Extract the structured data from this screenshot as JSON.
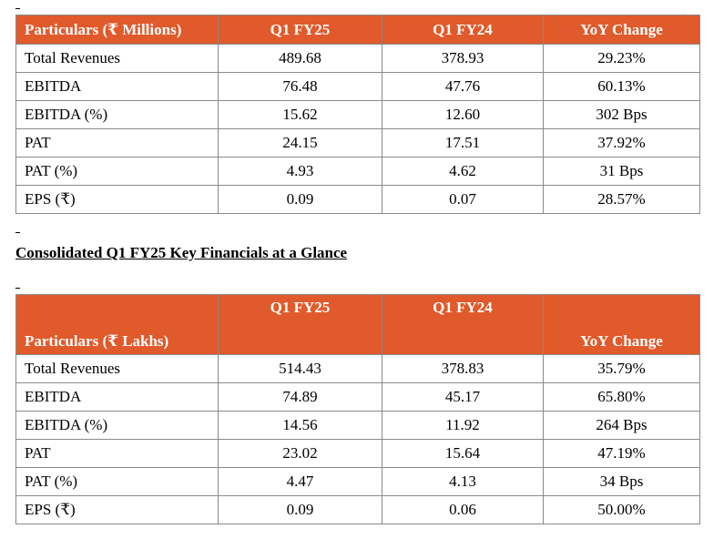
{
  "table1": {
    "headers": [
      "Particulars (₹ Millions)",
      "Q1 FY25",
      "Q1 FY24",
      "YoY Change"
    ],
    "rows": [
      [
        "Total Revenues",
        "489.68",
        "378.93",
        "29.23%"
      ],
      [
        "EBITDA",
        "76.48",
        "47.76",
        "60.13%"
      ],
      [
        "EBITDA (%)",
        "15.62",
        "12.60",
        "302 Bps"
      ],
      [
        "PAT",
        "24.15",
        "17.51",
        "37.92%"
      ],
      [
        "PAT (%)",
        "4.93",
        "4.62",
        "31 Bps"
      ],
      [
        "EPS (₹)",
        "0.09",
        "0.07",
        "28.57%"
      ]
    ]
  },
  "section_title": "Consolidated Q1 FY25 Key Financials at a Glance",
  "table2": {
    "headers": [
      "Particulars (₹ Lakhs)",
      "Q1 FY25",
      "Q1 FY24",
      "YoY Change"
    ],
    "rows": [
      [
        "Total Revenues",
        "514.43",
        "378.83",
        "35.79%"
      ],
      [
        "EBITDA",
        "74.89",
        "45.17",
        "65.80%"
      ],
      [
        "EBITDA (%)",
        "14.56",
        "11.92",
        "264 Bps"
      ],
      [
        "PAT",
        "23.02",
        "15.64",
        "47.19%"
      ],
      [
        "PAT (%)",
        "4.47",
        "4.13",
        "34 Bps"
      ],
      [
        "EPS (₹)",
        "0.09",
        "0.06",
        "50.00%"
      ]
    ]
  },
  "colors": {
    "header_background": "#e05a2b",
    "header_text": "#ffffff",
    "border": "#8a8a8a"
  }
}
